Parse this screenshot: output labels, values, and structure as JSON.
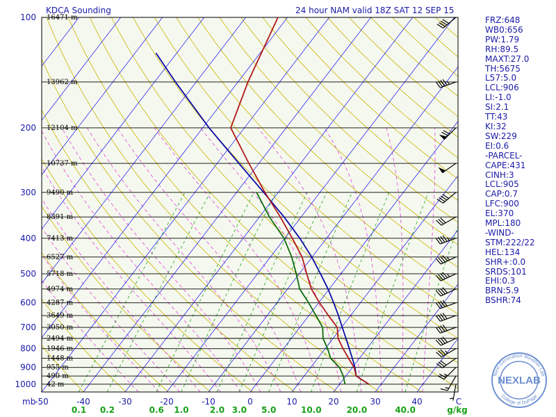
{
  "header": {
    "station": "KDCA Sounding",
    "valid": "24 hour NAM valid 18Z SAT 12 SEP 15"
  },
  "indices": [
    "FRZ:648",
    "WB0:656",
    "PW:1.79",
    "RH:89.5",
    "MAXT:27.0",
    "TH:5675",
    "L57:5.0",
    "LCL:906",
    "LI:-1.0",
    "SI:2.1",
    "TT:43",
    "KI:32",
    "SW:229",
    "EI:0.6",
    "-PARCEL-",
    "CAPE:431",
    "CINH:3",
    "LCL:905",
    "CAP:0.7",
    "LFC:900",
    "EL:370",
    "MPL:180",
    "-WIND-",
    "STM:222/22",
    "HEL:134",
    "SHR+:0.0",
    "SRDS:101",
    "EHI:0.3",
    "BRN:5.9",
    "BSHR:74"
  ],
  "logo": {
    "name": "NEXLAB",
    "ring_text_top": "Next Generation Weather Lab",
    "ring_text_bottom": "College of DuPage"
  },
  "colors": {
    "background": "#f5f8ee",
    "isobar": "#000000",
    "isotherm": "#2a2af0",
    "dry_adiabat": "#c8b400",
    "moist_adiabat": "#e040e0",
    "mixing_ratio": "#1aa31a",
    "temperature": "#b01818",
    "dewpoint": "#0c6b0c",
    "parcel": "#0a0aa8",
    "label": "#1a1aa8",
    "mixing_label": "#19a019"
  },
  "chart_data": {
    "type": "skew-t",
    "x_unit": "°C",
    "y_unit": "mb",
    "y_axis_label": "mb",
    "pressure_ticks": [
      100,
      200,
      300,
      400,
      500,
      600,
      700,
      800,
      900,
      1000
    ],
    "temperature_ticks": [
      -50,
      -40,
      -30,
      -20,
      -10,
      0,
      10,
      20,
      30,
      40
    ],
    "temp_tick_labels": [
      "-50",
      "-40",
      "-30",
      "-20",
      "-10",
      "0",
      "10",
      "20",
      "30",
      "40",
      "C"
    ],
    "height_labels": [
      {
        "p": 100,
        "label": "16471 m"
      },
      {
        "p": 150,
        "label": "13962 m"
      },
      {
        "p": 200,
        "label": "12104 m"
      },
      {
        "p": 250,
        "label": "10737 m"
      },
      {
        "p": 300,
        "label": "9490 m"
      },
      {
        "p": 350,
        "label": "8391 m"
      },
      {
        "p": 400,
        "label": "7413 m"
      },
      {
        "p": 450,
        "label": "6527 m"
      },
      {
        "p": 500,
        "label": "5718 m"
      },
      {
        "p": 550,
        "label": "4974 m"
      },
      {
        "p": 600,
        "label": "4287 m"
      },
      {
        "p": 650,
        "label": "3649 m"
      },
      {
        "p": 700,
        "label": "3050 m"
      },
      {
        "p": 750,
        "label": "2494 m"
      },
      {
        "p": 800,
        "label": "1946 m"
      },
      {
        "p": 850,
        "label": "1448 m"
      },
      {
        "p": 900,
        "label": "955 m"
      },
      {
        "p": 950,
        "label": "490 m"
      },
      {
        "p": 1000,
        "label": "42 m"
      }
    ],
    "mixing_ratio_ticks": [
      "0.1",
      "0.2",
      "0.6",
      "1.0",
      "2.0",
      "3.0",
      "5.0",
      "10.0",
      "20.0",
      "40.0"
    ],
    "mixing_ratio_unit": "g/kg",
    "mixing_ratio_values": [
      0.1,
      0.2,
      0.6,
      1.0,
      2.0,
      3.0,
      5.0,
      10.0,
      20.0,
      40.0
    ],
    "temperature_profile": [
      {
        "p": 1000,
        "t": 27.0
      },
      {
        "p": 950,
        "t": 22.5
      },
      {
        "p": 900,
        "t": 20.4
      },
      {
        "p": 850,
        "t": 17.4
      },
      {
        "p": 800,
        "t": 14.3
      },
      {
        "p": 750,
        "t": 11.2
      },
      {
        "p": 700,
        "t": 9.0
      },
      {
        "p": 650,
        "t": 4.7
      },
      {
        "p": 600,
        "t": 0.2
      },
      {
        "p": 550,
        "t": -4.3
      },
      {
        "p": 500,
        "t": -8.2
      },
      {
        "p": 450,
        "t": -12.4
      },
      {
        "p": 400,
        "t": -18.2
      },
      {
        "p": 350,
        "t": -25.0
      },
      {
        "p": 300,
        "t": -33.2
      },
      {
        "p": 250,
        "t": -42.4
      },
      {
        "p": 200,
        "t": -53.3
      },
      {
        "p": 150,
        "t": -57.6
      },
      {
        "p": 100,
        "t": -62.3
      }
    ],
    "dewpoint_profile": [
      {
        "p": 1000,
        "t": 21.3
      },
      {
        "p": 950,
        "t": 19.4
      },
      {
        "p": 900,
        "t": 16.9
      },
      {
        "p": 850,
        "t": 13.1
      },
      {
        "p": 800,
        "t": 10.6
      },
      {
        "p": 750,
        "t": 7.6
      },
      {
        "p": 700,
        "t": 5.5
      },
      {
        "p": 650,
        "t": 1.7
      },
      {
        "p": 600,
        "t": -2.4
      },
      {
        "p": 550,
        "t": -7.1
      },
      {
        "p": 500,
        "t": -10.7
      },
      {
        "p": 450,
        "t": -14.9
      },
      {
        "p": 400,
        "t": -20.2
      },
      {
        "p": 350,
        "t": -27.6
      },
      {
        "p": 300,
        "t": -35.2
      }
    ],
    "parcel_profile": [
      {
        "p": 1000,
        "t": 27.0
      },
      {
        "p": 950,
        "t": 22.5
      },
      {
        "p": 900,
        "t": 20.6
      },
      {
        "p": 850,
        "t": 18.3
      },
      {
        "p": 800,
        "t": 15.8
      },
      {
        "p": 750,
        "t": 13.1
      },
      {
        "p": 700,
        "t": 10.2
      },
      {
        "p": 650,
        "t": 7.1
      },
      {
        "p": 600,
        "t": 3.6
      },
      {
        "p": 550,
        "t": -0.3
      },
      {
        "p": 500,
        "t": -4.9
      },
      {
        "p": 450,
        "t": -10.1
      },
      {
        "p": 400,
        "t": -16.4
      },
      {
        "p": 350,
        "t": -24.1
      },
      {
        "p": 300,
        "t": -33.5
      },
      {
        "p": 250,
        "t": -44.8
      },
      {
        "p": 200,
        "t": -58.5
      },
      {
        "p": 150,
        "t": -75.0
      },
      {
        "p": 125,
        "t": -85.0
      }
    ],
    "wind_barbs": [
      {
        "p": 1000,
        "dir": 190,
        "spd": 5
      },
      {
        "p": 950,
        "dir": 210,
        "spd": 15
      },
      {
        "p": 900,
        "dir": 225,
        "spd": 25
      },
      {
        "p": 850,
        "dir": 235,
        "spd": 30
      },
      {
        "p": 800,
        "dir": 240,
        "spd": 35
      },
      {
        "p": 750,
        "dir": 245,
        "spd": 40
      },
      {
        "p": 700,
        "dir": 250,
        "spd": 40
      },
      {
        "p": 650,
        "dir": 250,
        "spd": 40
      },
      {
        "p": 600,
        "dir": 250,
        "spd": 40
      },
      {
        "p": 550,
        "dir": 245,
        "spd": 40
      },
      {
        "p": 500,
        "dir": 245,
        "spd": 45
      },
      {
        "p": 450,
        "dir": 245,
        "spd": 45
      },
      {
        "p": 400,
        "dir": 250,
        "spd": 45
      },
      {
        "p": 350,
        "dir": 240,
        "spd": 30
      },
      {
        "p": 300,
        "dir": 230,
        "spd": 40
      },
      {
        "p": 250,
        "dir": 235,
        "spd": 50
      },
      {
        "p": 200,
        "dir": 225,
        "spd": 70
      },
      {
        "p": 150,
        "dir": 250,
        "spd": 45
      },
      {
        "p": 100,
        "dir": 230,
        "spd": 40
      }
    ]
  }
}
